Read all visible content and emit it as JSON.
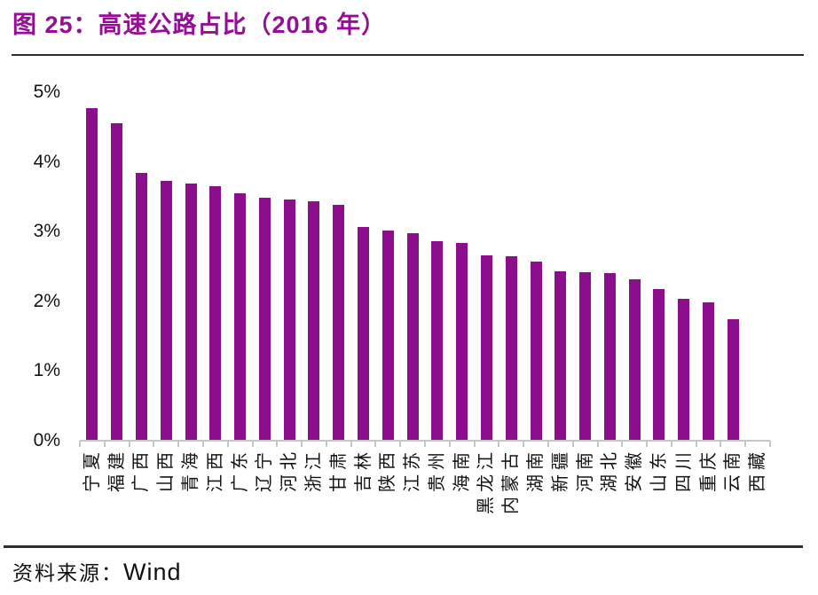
{
  "title": "图 25：高速公路占比（2016 年）",
  "source": {
    "prefix": "资料来源：",
    "name": "Wind"
  },
  "colors": {
    "bar": "#8C0E8C",
    "title": "#970D97",
    "axis": "#c6c6c6",
    "text": "#141414",
    "rule": "#2e2e2e"
  },
  "chart_data": {
    "type": "bar",
    "title": "高速公路占比（2016 年）",
    "unit": "%",
    "categories": [
      "宁夏",
      "福建",
      "广西",
      "山西",
      "青海",
      "江西",
      "广东",
      "辽宁",
      "河北",
      "浙江",
      "甘肃",
      "吉林",
      "陕西",
      "江苏",
      "贵州",
      "海南",
      "黑龙江",
      "内蒙古",
      "湖南",
      "新疆",
      "河南",
      "湖北",
      "安徽",
      "山东",
      "四川",
      "重庆",
      "云南",
      "西藏"
    ],
    "values": [
      4.77,
      4.55,
      3.84,
      3.73,
      3.69,
      3.65,
      3.55,
      3.49,
      3.46,
      3.43,
      3.39,
      3.07,
      3.02,
      2.98,
      2.86,
      2.84,
      2.66,
      2.65,
      2.57,
      2.43,
      2.42,
      2.4,
      2.31,
      2.17,
      2.03,
      1.98,
      1.74,
      0.0
    ],
    "xlabel": "",
    "ylabel": "",
    "ylim": [
      0,
      5
    ],
    "yticks": [
      "0%",
      "1%",
      "2%",
      "3%",
      "4%",
      "5%"
    ],
    "grid": false,
    "legend": "none",
    "x_label_rotation": -90
  }
}
